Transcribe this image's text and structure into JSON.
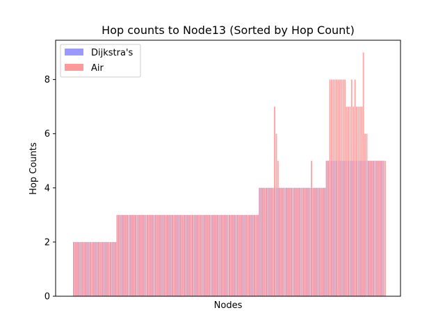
{
  "chart_data": {
    "type": "bar",
    "title": "Hop counts to Node13 (Sorted by Hop Count)",
    "xlabel": "Nodes",
    "ylabel": "Hop Counts",
    "ylim": [
      0,
      9.45
    ],
    "yticks": [
      0,
      2,
      4,
      6,
      8
    ],
    "grid": false,
    "legend_position": "top-left",
    "xticks": [],
    "series": [
      {
        "name": "Dijkstra's",
        "color": "#9999ff",
        "values": [
          2,
          2,
          2,
          2,
          2,
          2,
          2,
          2,
          2,
          2,
          2,
          2,
          2,
          2,
          2,
          2,
          2,
          2,
          2,
          2,
          2,
          2,
          2,
          2,
          2,
          2,
          3,
          3,
          3,
          3,
          3,
          3,
          3,
          3,
          3,
          3,
          3,
          3,
          3,
          3,
          3,
          3,
          3,
          3,
          3,
          3,
          3,
          3,
          3,
          3,
          3,
          3,
          3,
          3,
          3,
          3,
          3,
          3,
          3,
          3,
          3,
          3,
          3,
          3,
          3,
          3,
          3,
          3,
          3,
          3,
          3,
          3,
          3,
          3,
          3,
          3,
          3,
          3,
          3,
          3,
          3,
          3,
          3,
          3,
          3,
          3,
          3,
          3,
          3,
          3,
          3,
          3,
          3,
          3,
          3,
          3,
          3,
          3,
          3,
          3,
          3,
          3,
          3,
          3,
          3,
          3,
          3,
          3,
          3,
          3,
          3,
          4,
          4,
          4,
          4,
          4,
          4,
          4,
          4,
          4,
          4,
          4,
          4,
          4,
          4,
          4,
          4,
          4,
          4,
          4,
          4,
          4,
          4,
          4,
          4,
          4,
          4,
          4,
          4,
          4,
          4,
          4,
          4,
          4,
          4,
          4,
          4,
          4,
          4,
          4,
          4,
          5,
          5,
          5,
          5,
          5,
          5,
          5,
          5,
          5,
          5,
          5,
          5,
          5,
          5,
          5,
          5,
          5,
          5,
          5,
          5,
          5,
          5,
          5,
          5,
          5,
          5,
          5,
          5,
          5,
          5,
          5,
          5,
          5,
          5,
          5
        ]
      },
      {
        "name": "Air",
        "color": "#ff9999",
        "values": [
          2,
          2,
          2,
          2,
          2,
          2,
          2,
          2,
          2,
          2,
          2,
          2,
          2,
          2,
          2,
          2,
          2,
          2,
          2,
          2,
          2,
          2,
          2,
          2,
          2,
          2,
          3,
          3,
          3,
          3,
          3,
          3,
          3,
          3,
          3,
          3,
          3,
          3,
          3,
          3,
          3,
          3,
          3,
          3,
          3,
          3,
          3,
          3,
          3,
          3,
          3,
          3,
          3,
          3,
          3,
          3,
          3,
          3,
          3,
          3,
          3,
          3,
          3,
          3,
          3,
          3,
          3,
          3,
          3,
          3,
          3,
          3,
          3,
          3,
          3,
          3,
          3,
          3,
          3,
          3,
          3,
          3,
          3,
          3,
          3,
          3,
          3,
          3,
          3,
          3,
          3,
          3,
          3,
          3,
          3,
          3,
          3,
          3,
          3,
          3,
          3,
          3,
          3,
          3,
          3,
          3,
          3,
          3,
          3,
          3,
          3,
          4,
          4,
          4,
          4,
          4,
          4,
          4,
          4,
          4,
          7,
          6,
          5,
          4,
          4,
          4,
          4,
          4,
          4,
          4,
          4,
          4,
          4,
          4,
          4,
          4,
          4,
          4,
          4,
          4,
          4,
          4,
          5,
          4,
          4,
          4,
          4,
          4,
          4,
          4,
          4,
          5,
          5,
          8,
          8,
          8,
          8,
          8,
          8,
          8,
          8,
          8,
          8,
          7,
          7,
          7,
          8,
          7,
          8,
          7,
          7,
          7,
          7,
          9,
          6,
          6,
          5,
          5,
          5,
          5,
          5,
          5,
          5,
          5,
          5,
          5,
          5
        ]
      }
    ]
  }
}
